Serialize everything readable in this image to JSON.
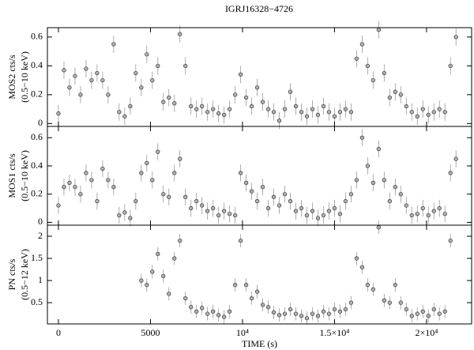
{
  "chart_data": [
    {
      "type": "scatter",
      "title": "IGRJ16328−4726",
      "ylabel": [
        "MOS2 cts/s",
        "(0.5−10 keV)"
      ],
      "x": [
        0,
        300,
        600,
        900,
        1200,
        1500,
        1800,
        2100,
        2400,
        2700,
        3000,
        3300,
        3600,
        3900,
        4200,
        4500,
        4800,
        5100,
        5400,
        5700,
        6000,
        6300,
        6600,
        6900,
        7200,
        7500,
        7800,
        8100,
        8400,
        8700,
        9000,
        9300,
        9600,
        9900,
        10200,
        10500,
        10800,
        11100,
        11400,
        11700,
        12000,
        12300,
        12600,
        12900,
        13200,
        13500,
        13800,
        14100,
        14400,
        14700,
        15000,
        15300,
        15600,
        15900,
        16200,
        16500,
        16800,
        17100,
        17400,
        17700,
        18000,
        18300,
        18600,
        18900,
        19200,
        19500,
        19800,
        20100,
        20400,
        20700,
        21000,
        21300,
        21600
      ],
      "values": [
        0.07,
        0.37,
        0.25,
        0.33,
        0.2,
        0.38,
        0.3,
        0.35,
        0.3,
        0.2,
        0.55,
        0.08,
        0.05,
        0.12,
        0.35,
        0.25,
        0.48,
        0.3,
        0.4,
        0.15,
        0.18,
        0.14,
        0.62,
        0.4,
        0.12,
        0.1,
        0.12,
        0.08,
        0.1,
        0.07,
        0.06,
        0.1,
        0.2,
        0.34,
        0.18,
        0.12,
        0.25,
        0.15,
        0.1,
        0.08,
        0.02,
        0.1,
        0.22,
        0.12,
        0.08,
        0.05,
        0.1,
        0.06,
        0.12,
        0.08,
        0.05,
        0.08,
        0.1,
        0.08,
        0.45,
        0.55,
        0.4,
        0.3,
        0.65,
        0.35,
        0.18,
        0.22,
        0.2,
        0.12,
        0.08,
        0.05,
        0.1,
        0.06,
        0.08,
        0.1,
        0.08,
        0.4,
        0.6
      ],
      "error": 0.06,
      "color": "#b0b0b0",
      "xlim": [
        -600,
        22450
      ],
      "ylim": [
        -0.02,
        0.665
      ],
      "yticks": [
        0,
        0.2,
        0.4,
        0.6
      ]
    },
    {
      "type": "scatter",
      "ylabel": [
        "MOS1 cts/s",
        "(0.5−10 keV)"
      ],
      "x": [
        0,
        300,
        600,
        900,
        1200,
        1500,
        1800,
        2100,
        2400,
        2700,
        3000,
        3300,
        3600,
        3900,
        4200,
        4500,
        4800,
        5100,
        5400,
        5700,
        6000,
        6300,
        6600,
        6900,
        7200,
        7500,
        7800,
        8100,
        8400,
        8700,
        9000,
        9300,
        9600,
        9900,
        10200,
        10500,
        10800,
        11100,
        11400,
        11700,
        12000,
        12300,
        12600,
        12900,
        13200,
        13500,
        13800,
        14100,
        14400,
        14700,
        15000,
        15300,
        15600,
        15900,
        16200,
        16500,
        16800,
        17100,
        17400,
        17700,
        18000,
        18300,
        18600,
        18900,
        19200,
        19500,
        19800,
        20100,
        20400,
        20700,
        21000,
        21300,
        21600
      ],
      "values": [
        0.12,
        0.25,
        0.28,
        0.25,
        0.2,
        0.35,
        0.3,
        0.15,
        0.38,
        0.3,
        0.25,
        0.05,
        0.07,
        0.03,
        0.15,
        0.35,
        0.42,
        0.3,
        0.5,
        0.2,
        0.18,
        0.35,
        0.45,
        0.18,
        0.1,
        0.15,
        0.12,
        0.08,
        0.1,
        0.05,
        0.08,
        0.06,
        0.05,
        0.35,
        0.28,
        0.22,
        0.15,
        0.25,
        0.1,
        0.18,
        0.12,
        0.2,
        0.15,
        0.08,
        0.1,
        0.05,
        0.08,
        0.03,
        0.05,
        0.08,
        0.1,
        0.06,
        0.15,
        0.2,
        0.3,
        0.6,
        0.4,
        0.28,
        0.52,
        0.3,
        0.15,
        0.25,
        0.2,
        0.12,
        0.05,
        0.06,
        0.1,
        0.05,
        0.08,
        0.1,
        0.06,
        0.35,
        0.45
      ],
      "error": 0.06,
      "color": "#b0b0b0",
      "xlim": [
        -600,
        22450
      ],
      "ylim": [
        -0.02,
        0.68
      ],
      "yticks": [
        0,
        0.2,
        0.4,
        0.6
      ]
    },
    {
      "type": "scatter",
      "ylabel": [
        "PN cts/s",
        "(0.5−12 keV)"
      ],
      "xlabel": "TIME (s)",
      "x": [
        0,
        300,
        600,
        900,
        1200,
        1500,
        1800,
        2100,
        2400,
        2700,
        3000,
        3300,
        3600,
        3900,
        4200,
        4500,
        4800,
        5100,
        5400,
        5700,
        6000,
        6300,
        6600,
        6900,
        7200,
        7500,
        7800,
        8100,
        8400,
        8700,
        9000,
        9300,
        9600,
        9900,
        10200,
        10500,
        10800,
        11100,
        11400,
        11700,
        12000,
        12300,
        12600,
        12900,
        13200,
        13500,
        13800,
        14100,
        14400,
        14700,
        15000,
        15300,
        15600,
        15900,
        16200,
        16500,
        16800,
        17100,
        17400,
        17700,
        18000,
        18300,
        18600,
        18900,
        19200,
        19500,
        19800,
        20100,
        20400,
        20700,
        21000,
        21300,
        21600
      ],
      "values": [
        null,
        null,
        null,
        null,
        null,
        null,
        null,
        null,
        null,
        null,
        null,
        null,
        null,
        null,
        null,
        1.0,
        0.9,
        1.2,
        1.6,
        1.1,
        0.7,
        1.5,
        1.9,
        0.6,
        0.4,
        0.3,
        0.38,
        0.25,
        0.3,
        0.22,
        0.18,
        0.3,
        0.9,
        1.9,
        0.9,
        0.6,
        0.75,
        0.45,
        0.4,
        0.28,
        0.22,
        0.25,
        0.35,
        0.25,
        0.2,
        0.15,
        0.25,
        0.2,
        0.3,
        0.25,
        0.35,
        0.3,
        0.35,
        0.5,
        1.5,
        1.3,
        0.9,
        0.8,
        2.2,
        0.55,
        0.5,
        0.9,
        0.5,
        0.35,
        0.2,
        0.25,
        0.3,
        0.2,
        0.35,
        0.25,
        0.3,
        1.9,
        null
      ],
      "error": 0.15,
      "color": "#b0b0b0",
      "xlim": [
        -600,
        22450
      ],
      "ylim": [
        0.02,
        2.25
      ],
      "yticks": [
        0.5,
        1,
        1.5,
        2
      ],
      "xticks": [
        0,
        5000,
        {
          "value": 10000,
          "label": "10⁴"
        },
        {
          "value": 15000,
          "label": "1.5×10⁴"
        },
        {
          "value": 20000,
          "label": "2×10⁴"
        }
      ]
    }
  ]
}
